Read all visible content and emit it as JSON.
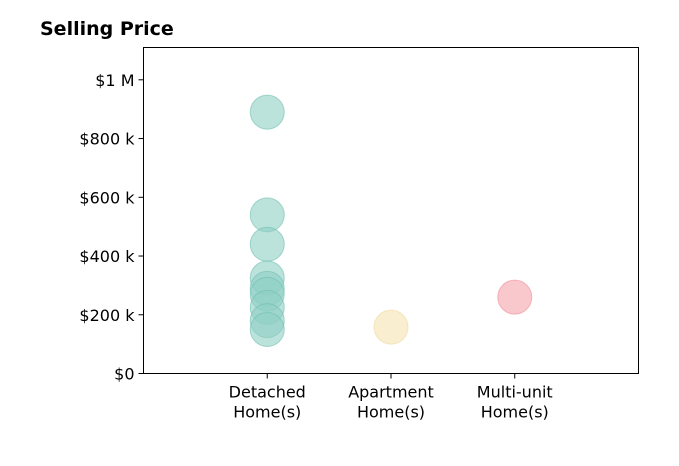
{
  "chart_data": {
    "type": "scatter",
    "title": "Selling Price",
    "xlabel": "",
    "ylabel": "",
    "categories": [
      [
        "Detached",
        "Home(s)"
      ],
      [
        "Apartment",
        "Home(s)"
      ],
      [
        "Multi-unit",
        "Home(s)"
      ]
    ],
    "yticks": [
      {
        "value": 0,
        "label": "$0"
      },
      {
        "value": 200000,
        "label": "$200 k"
      },
      {
        "value": 400000,
        "label": "$400 k"
      },
      {
        "value": 600000,
        "label": "$600 k"
      },
      {
        "value": 800000,
        "label": "$800 k"
      },
      {
        "value": 1000000,
        "label": "$1 M"
      }
    ],
    "ylim": [
      0,
      1110000
    ],
    "xlim": [
      -1,
      3
    ],
    "grid": false,
    "legend": "none",
    "series": [
      {
        "category_index": 0,
        "color": "#8dcfc3",
        "stroke": "#6fbfb1",
        "values": [
          890000,
          540000,
          440000,
          325000,
          290000,
          270000,
          225000,
          180000,
          150000
        ]
      },
      {
        "category_index": 1,
        "color": "#f7e3b0",
        "stroke": "#f0d89c",
        "values": [
          158000
        ]
      },
      {
        "category_index": 2,
        "color": "#f5a3ac",
        "stroke": "#ee8e98",
        "values": [
          260000
        ]
      }
    ]
  }
}
